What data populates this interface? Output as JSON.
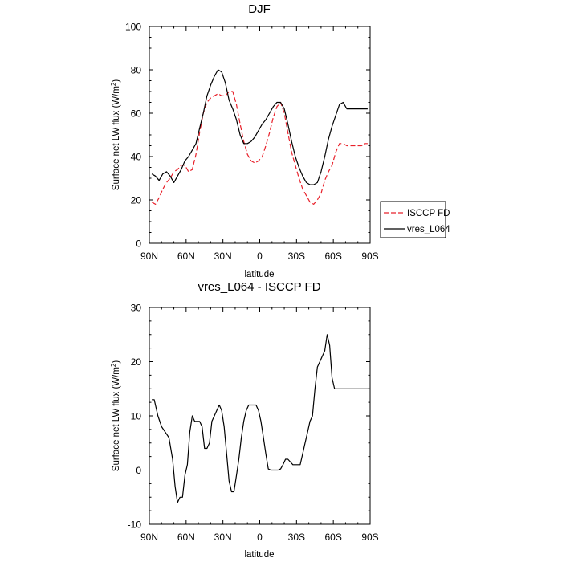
{
  "chart_data": [
    {
      "type": "line",
      "title": "DJF",
      "xlabel": "latitude",
      "ylabel": "Surface net LW flux (W/m",
      "ylabel_sup": "2",
      "ylabel_close": ")",
      "ylim": [
        0,
        100
      ],
      "xlim": [
        90,
        -90
      ],
      "xticks": [
        {
          "v": 90,
          "label": "90N"
        },
        {
          "v": 60,
          "label": "60N"
        },
        {
          "v": 30,
          "label": "30N"
        },
        {
          "v": 0,
          "label": "0"
        },
        {
          "v": -30,
          "label": "30S"
        },
        {
          "v": -60,
          "label": "60S"
        },
        {
          "v": -90,
          "label": "90S"
        }
      ],
      "yticks": [
        {
          "v": 0,
          "label": "0"
        },
        {
          "v": 20,
          "label": "20"
        },
        {
          "v": 40,
          "label": "40"
        },
        {
          "v": 60,
          "label": "60"
        },
        {
          "v": 80,
          "label": "80"
        },
        {
          "v": 100,
          "label": "100"
        }
      ],
      "legend": {
        "placement": "right",
        "items": [
          "ISCCP FD",
          "vres_L064"
        ]
      },
      "series": [
        {
          "name": "ISCCP FD",
          "color": "#e8202a",
          "dash": true,
          "x": [
            88,
            85,
            82,
            79,
            76,
            73,
            70,
            67,
            64,
            61,
            58,
            55,
            52,
            49,
            46,
            43,
            40,
            37,
            34,
            31,
            28,
            25,
            22,
            19,
            16,
            13,
            10,
            7,
            4,
            1,
            -2,
            -5,
            -8,
            -11,
            -14,
            -17,
            -20,
            -23,
            -26,
            -29,
            -32,
            -35,
            -38,
            -41,
            -44,
            -47,
            -50,
            -53,
            -56,
            -59,
            -62,
            -65,
            -68,
            -71,
            -74,
            -77,
            -80,
            -83,
            -86,
            -88
          ],
          "values": [
            19,
            18,
            21,
            25,
            28,
            30,
            33,
            34,
            36,
            36,
            33,
            34,
            41,
            51,
            60,
            65,
            67,
            68,
            69,
            68,
            68,
            70,
            70,
            64,
            55,
            47,
            41,
            38,
            37,
            38,
            40,
            45,
            51,
            58,
            63,
            65,
            60,
            51,
            42,
            36,
            30,
            25,
            22,
            19,
            18,
            20,
            23,
            29,
            33,
            36,
            42,
            46,
            46,
            45,
            45,
            45,
            45,
            45,
            46,
            46
          ]
        },
        {
          "name": "vres_L064",
          "color": "#000000",
          "dash": false,
          "x": [
            88,
            85,
            82,
            79,
            76,
            73,
            70,
            67,
            64,
            61,
            58,
            55,
            52,
            49,
            46,
            43,
            40,
            37,
            34,
            31,
            28,
            25,
            22,
            19,
            16,
            13,
            10,
            7,
            4,
            1,
            -2,
            -5,
            -8,
            -11,
            -14,
            -17,
            -20,
            -23,
            -26,
            -29,
            -32,
            -35,
            -38,
            -41,
            -44,
            -47,
            -50,
            -53,
            -56,
            -59,
            -62,
            -65,
            -68,
            -71,
            -74,
            -77,
            -80,
            -83,
            -86,
            -88
          ],
          "values": [
            32,
            31,
            29,
            32,
            33,
            31,
            28,
            31,
            34,
            38,
            40,
            43,
            46,
            53,
            60,
            68,
            73,
            77,
            80,
            79,
            74,
            66,
            62,
            57,
            50,
            46,
            46,
            47,
            49,
            52,
            55,
            57,
            60,
            63,
            65,
            65,
            62,
            55,
            47,
            40,
            35,
            31,
            28,
            27,
            27,
            28,
            33,
            40,
            48,
            54,
            59,
            64,
            65,
            62,
            62,
            62,
            62,
            62,
            62,
            62
          ]
        }
      ]
    },
    {
      "type": "line",
      "title": "vres_L064 - ISCCP FD",
      "xlabel": "latitude",
      "ylabel": "Surface net LW flux (W/m",
      "ylabel_sup": "2",
      "ylabel_close": ")",
      "ylim": [
        -10,
        30
      ],
      "xlim": [
        90,
        -90
      ],
      "xticks": [
        {
          "v": 90,
          "label": "90N"
        },
        {
          "v": 60,
          "label": "60N"
        },
        {
          "v": 30,
          "label": "30N"
        },
        {
          "v": 0,
          "label": "0"
        },
        {
          "v": -30,
          "label": "30S"
        },
        {
          "v": -60,
          "label": "60S"
        },
        {
          "v": -90,
          "label": "90S"
        }
      ],
      "yticks": [
        {
          "v": -10,
          "label": "-10"
        },
        {
          "v": 0,
          "label": "0"
        },
        {
          "v": 10,
          "label": "10"
        },
        {
          "v": 20,
          "label": "20"
        },
        {
          "v": 30,
          "label": "30"
        }
      ],
      "series": [
        {
          "name": "vres_L064 - ISCCP FD",
          "color": "#000000",
          "dash": false,
          "x": [
            88,
            86,
            83,
            80,
            77,
            74,
            71,
            69,
            67,
            65,
            63,
            61,
            59,
            57,
            55,
            53,
            51,
            49,
            47,
            45,
            43,
            41,
            39,
            37,
            35,
            33,
            31,
            29,
            27,
            25,
            23,
            21,
            19,
            17,
            15,
            13,
            11,
            9,
            7,
            5,
            3,
            1,
            -1,
            -3,
            -5,
            -7,
            -9,
            -11,
            -13,
            -15,
            -17,
            -19,
            -21,
            -23,
            -25,
            -27,
            -29,
            -31,
            -33,
            -35,
            -37,
            -39,
            -41,
            -43,
            -45,
            -47,
            -49,
            -51,
            -53,
            -55,
            -57,
            -59,
            -61,
            -63,
            -65,
            -67,
            -69,
            -71,
            -73,
            -75,
            -77,
            -79,
            -81,
            -83,
            -85,
            -87,
            -89
          ],
          "values": [
            13,
            13,
            10,
            8,
            7,
            6,
            2,
            -3,
            -6,
            -5,
            -5,
            -1,
            1,
            7,
            10,
            9,
            9,
            9,
            8,
            4,
            4,
            5,
            9,
            10,
            11,
            12,
            11,
            8,
            3,
            -2,
            -4,
            -4,
            -1,
            2,
            6,
            9,
            11,
            12,
            12,
            12,
            12,
            11,
            9,
            6,
            3,
            0.2,
            0,
            0,
            0,
            0,
            0.2,
            1,
            2,
            2,
            1.5,
            1,
            1,
            1,
            1,
            3,
            5,
            7,
            9,
            10,
            15,
            19,
            20,
            21,
            22,
            25,
            23,
            17,
            15,
            15,
            15,
            15,
            15,
            15,
            15,
            15,
            15,
            15,
            15,
            15,
            15,
            15,
            15
          ]
        }
      ]
    }
  ]
}
